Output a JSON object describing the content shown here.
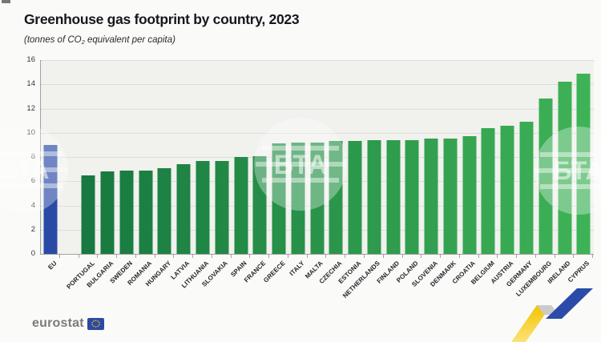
{
  "title": "Greenhouse gas footprint by country, 2023",
  "subtitle": {
    "prefix": "(tonnes of CO",
    "sub": "2",
    "suffix": " equivalent per capita)"
  },
  "chart_data": {
    "type": "bar",
    "categories": [
      "EU",
      "PORTUGAL",
      "BULGARIA",
      "SWEDEN",
      "ROMANIA",
      "HUNGARY",
      "LATVIA",
      "LITHUANIA",
      "SLOVAKIA",
      "SPAIN",
      "FRANCE",
      "GREECE",
      "ITALY",
      "MALTA",
      "CZECHIA",
      "ESTONIA",
      "NETHERLANDS",
      "FINLAND",
      "POLAND",
      "SLOVENIA",
      "DENMARK",
      "CROATIA",
      "BELGIUM",
      "AUSTRIA",
      "GERMANY",
      "LUXEMBOURG",
      "IRELAND",
      "CYPRUS"
    ],
    "values": [
      9.0,
      6.5,
      6.8,
      6.9,
      6.9,
      7.1,
      7.4,
      7.7,
      7.7,
      8.0,
      8.1,
      9.1,
      9.2,
      9.2,
      9.3,
      9.3,
      9.4,
      9.4,
      9.4,
      9.5,
      9.5,
      9.7,
      10.4,
      10.6,
      10.9,
      12.8,
      14.2,
      14.9
    ],
    "title": "Greenhouse gas footprint by country, 2023",
    "xlabel": "",
    "ylabel": "tonnes of CO2 equivalent per capita",
    "ylim": [
      0,
      16
    ],
    "ytick_step": 2,
    "yticks": [
      16,
      14,
      12,
      10,
      8,
      6,
      4,
      2,
      0
    ],
    "grid": "dotted horizontal",
    "legend": "none",
    "gap_after_first_bar": true,
    "colors": {
      "eu_bar": "#2B4AA6",
      "green_start": "#17793F",
      "green_end": "#3EB257",
      "plot_bg": "#f1f1ee",
      "page_bg": "#fafaf8",
      "gridline": "#c9c9c3",
      "axis": "#a2a29d"
    }
  },
  "watermark": {
    "text": "БТА"
  },
  "footer": {
    "brand": "eurostat",
    "flag_blue": "#2B4AA6",
    "star_yellow": "#FFCC00",
    "bta_yellow": "#F4C300",
    "bta_blue": "#2B4BA9",
    "bta_gray": "#cbcbcb"
  }
}
